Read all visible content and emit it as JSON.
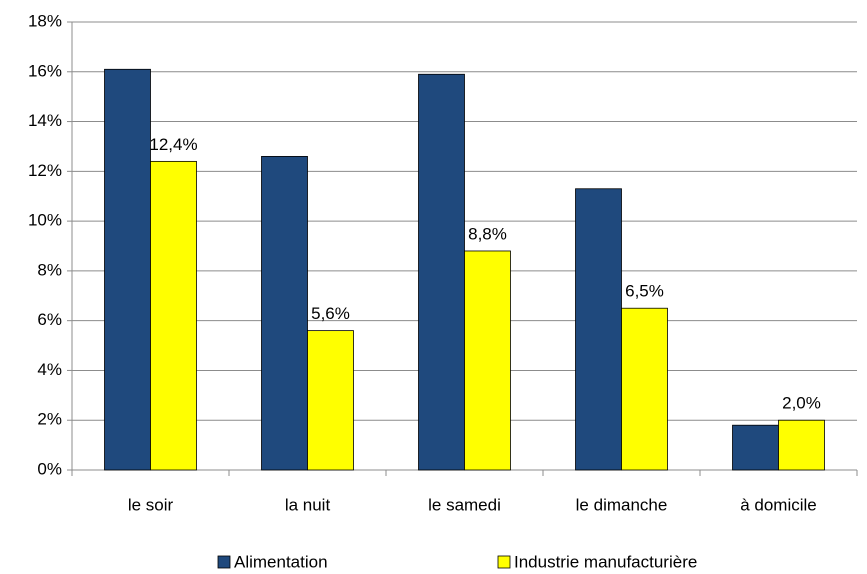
{
  "chart_data": {
    "type": "bar",
    "categories": [
      "le soir",
      "la nuit",
      "le samedi",
      "le dimanche",
      "à domicile"
    ],
    "series": [
      {
        "name": "Alimentation",
        "color": "#1f497d",
        "values": [
          16.1,
          12.6,
          15.9,
          11.3,
          1.8
        ]
      },
      {
        "name": "Industrie manufacturière",
        "color": "#ffff00",
        "values": [
          12.4,
          5.6,
          8.8,
          6.5,
          2.0
        ],
        "value_labels": [
          "12,4%",
          "5,6%",
          "8,8%",
          "6,5%",
          "2,0%"
        ]
      }
    ],
    "ylim": [
      0,
      18
    ],
    "yticks": [
      {
        "value": 0,
        "label": "0%"
      },
      {
        "value": 2,
        "label": "2%"
      },
      {
        "value": 4,
        "label": "4%"
      },
      {
        "value": 6,
        "label": "6%"
      },
      {
        "value": 8,
        "label": "8%"
      },
      {
        "value": 10,
        "label": "10%"
      },
      {
        "value": 12,
        "label": "12%"
      },
      {
        "value": 14,
        "label": "14%"
      },
      {
        "value": 16,
        "label": "16%"
      },
      {
        "value": 18,
        "label": "18%"
      }
    ],
    "grid": true,
    "legend": "bottom"
  }
}
